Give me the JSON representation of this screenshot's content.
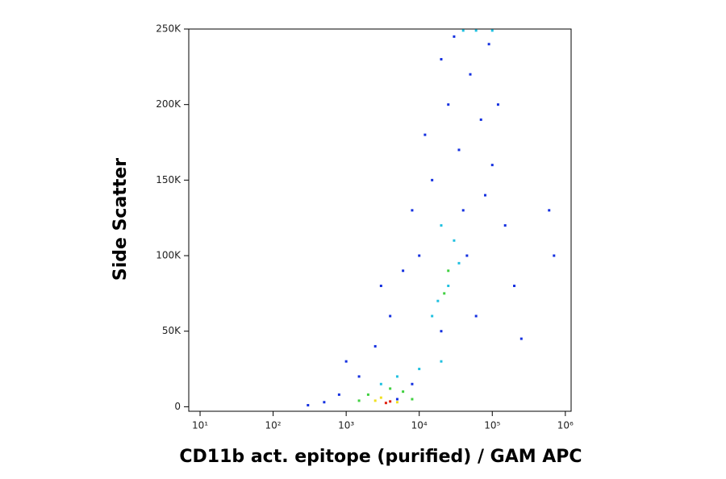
{
  "chart_data": {
    "type": "scatter",
    "x_label": "CD11b act. epitope (purified) / GAM APC",
    "y_label": "Side Scatter",
    "xscale": "log",
    "xlim": [
      7,
      1200000
    ],
    "ylim": [
      -3000,
      250000
    ],
    "xticks": [
      {
        "value": 10,
        "label": "10¹"
      },
      {
        "value": 100,
        "label": "10²"
      },
      {
        "value": 1000,
        "label": "10³"
      },
      {
        "value": 10000,
        "label": "10⁴"
      },
      {
        "value": 100000,
        "label": "10⁵"
      },
      {
        "value": 1000000,
        "label": "10⁶"
      }
    ],
    "yticks": [
      0,
      {
        "value": 50000,
        "label": "50K"
      },
      {
        "value": 100000,
        "label": "100K"
      },
      {
        "value": 150000,
        "label": "150K"
      },
      {
        "value": 200000,
        "label": "200K"
      },
      {
        "value": 250000,
        "label": "250K"
      }
    ],
    "series": [
      {
        "color": "#1430e0",
        "x": [
          500,
          800,
          1500,
          2500,
          4000,
          6000,
          8000,
          12000,
          20000,
          30000,
          50000,
          70000,
          100000,
          150000,
          200000,
          60000,
          40000,
          25000,
          15000,
          10000,
          3000,
          1000,
          300,
          90000,
          35000,
          45000,
          80000,
          120000,
          20000,
          600000,
          700000,
          5000,
          8000,
          250000
        ],
        "values": [
          3000,
          8000,
          20000,
          40000,
          60000,
          90000,
          130000,
          180000,
          230000,
          245000,
          220000,
          190000,
          160000,
          120000,
          80000,
          60000,
          130000,
          200000,
          150000,
          100000,
          80000,
          30000,
          1000,
          240000,
          170000,
          100000,
          140000,
          200000,
          50000,
          130000,
          100000,
          5000,
          15000,
          45000
        ]
      },
      {
        "color": "#20c0e0",
        "x": [
          10000,
          20000,
          15000,
          25000,
          30000,
          20000,
          35000,
          18000,
          3000,
          5000,
          40000,
          60000,
          100000
        ],
        "values": [
          25000,
          30000,
          60000,
          80000,
          110000,
          120000,
          95000,
          70000,
          15000,
          20000,
          249000,
          249000,
          249000
        ]
      },
      {
        "color": "#40d040",
        "x": [
          2000,
          4000,
          6000,
          1500,
          8000,
          25000,
          22000
        ],
        "values": [
          8000,
          12000,
          10000,
          4000,
          5000,
          90000,
          75000
        ]
      },
      {
        "color": "#f0e020",
        "x": [
          2500,
          5000,
          3000
        ],
        "values": [
          4000,
          3000,
          6000
        ]
      },
      {
        "color": "#e02010",
        "x": [
          3500,
          4000
        ],
        "values": [
          2500,
          3500
        ]
      }
    ]
  }
}
